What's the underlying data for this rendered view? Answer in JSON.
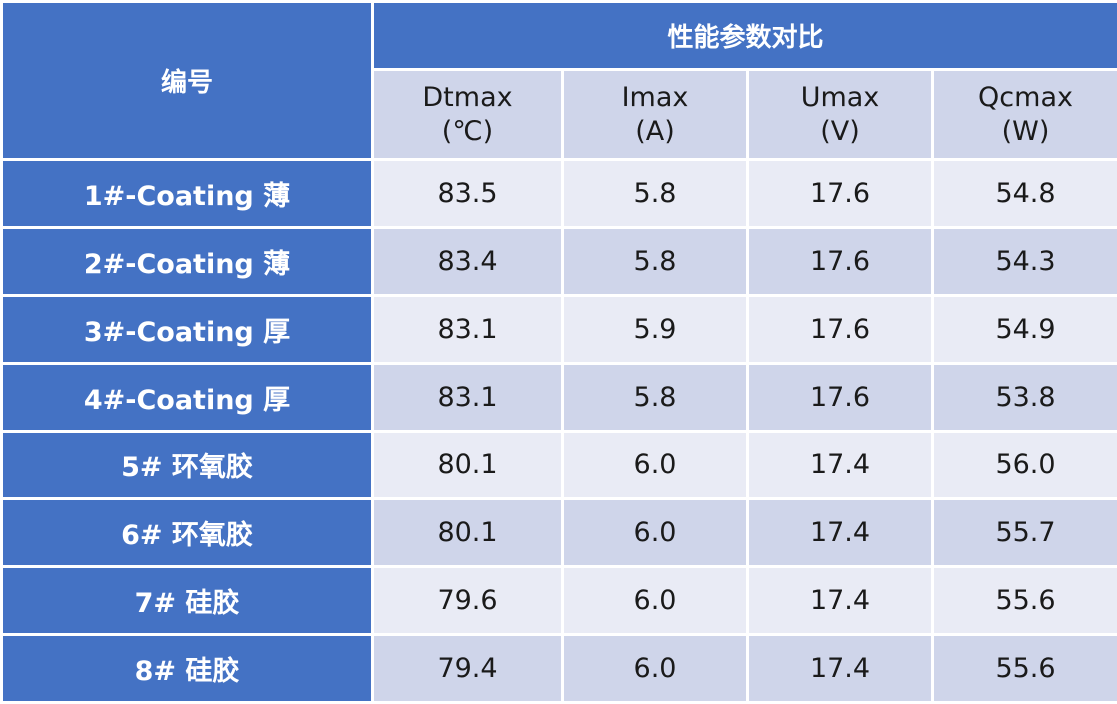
{
  "header": {
    "id_label": "编号",
    "group_label": "性能参数对比",
    "columns": [
      {
        "name": "Dtmax",
        "unit": "(℃)"
      },
      {
        "name": "Imax",
        "unit": "(A)"
      },
      {
        "name": "Umax",
        "unit": "(V)"
      },
      {
        "name": "Qcmax",
        "unit": "(W)"
      }
    ]
  },
  "rows": [
    {
      "id": "1#-Coating 薄",
      "dtmax": "83.5",
      "imax": "5.8",
      "umax": "17.6",
      "qcmax": "54.8"
    },
    {
      "id": "2#-Coating 薄",
      "dtmax": "83.4",
      "imax": "5.8",
      "umax": "17.6",
      "qcmax": "54.3"
    },
    {
      "id": "3#-Coating 厚",
      "dtmax": "83.1",
      "imax": "5.9",
      "umax": "17.6",
      "qcmax": "54.9"
    },
    {
      "id": "4#-Coating 厚",
      "dtmax": "83.1",
      "imax": "5.8",
      "umax": "17.6",
      "qcmax": "53.8"
    },
    {
      "id": "5#  环氧胶",
      "dtmax": "80.1",
      "imax": "6.0",
      "umax": "17.4",
      "qcmax": "56.0"
    },
    {
      "id": "6#  环氧胶",
      "dtmax": "80.1",
      "imax": "6.0",
      "umax": "17.4",
      "qcmax": "55.7"
    },
    {
      "id": "7#  硅胶",
      "dtmax": "79.6",
      "imax": "6.0",
      "umax": "17.4",
      "qcmax": "55.6"
    },
    {
      "id": "8#  硅胶",
      "dtmax": "79.4",
      "imax": "6.0",
      "umax": "17.4",
      "qcmax": "55.6"
    }
  ],
  "colors": {
    "header_blue": "#4472c4",
    "row_light": "#e9ebf5",
    "row_dark": "#cfd5ea",
    "border": "#ffffff"
  }
}
